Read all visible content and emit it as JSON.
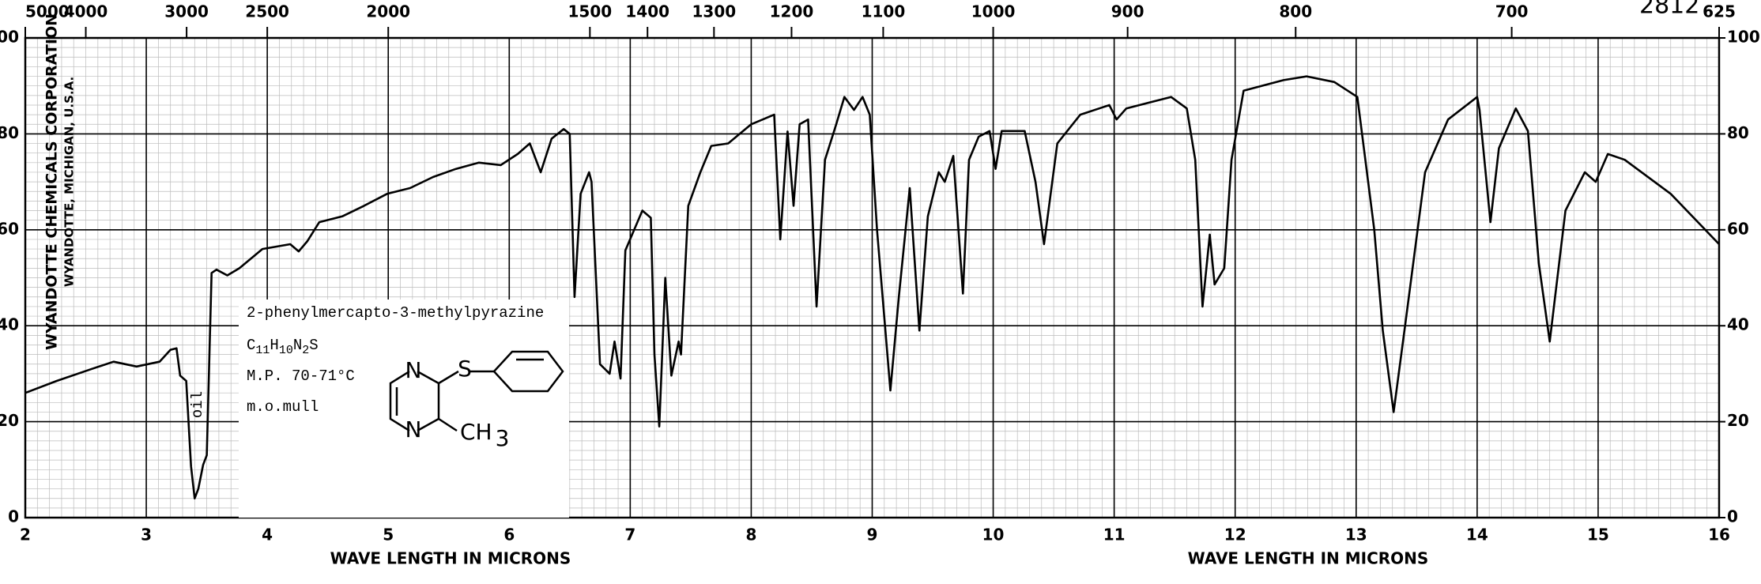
{
  "chart_data": {
    "type": "line",
    "x_label": "WAVE LENGTH IN MICRONS",
    "x_label_repeat": "WAVE LENGTH IN MICRONS",
    "annotations": {
      "code": "2812",
      "company": "WYANDOTTE CHEMICALS CORPORATION",
      "location": "WYANDOTTE, MICHIGAN, U.S.A.",
      "oil": "oil",
      "compound": "2-phenylmercapto-3-methylpyrazine",
      "formula": [
        "C",
        "11",
        "H",
        "10",
        "N",
        "2",
        "S"
      ],
      "melting_point": "M.P. 70-71°C",
      "method": "m.o.mull",
      "structure_labels": [
        "N",
        "N",
        "S",
        "CH",
        "3"
      ]
    },
    "x": [
      2.0,
      2.26,
      2.55,
      2.73,
      2.92,
      3.11,
      3.2,
      3.25,
      3.28,
      3.33,
      3.37,
      3.4,
      3.43,
      3.47,
      3.5,
      3.54,
      3.58,
      3.67,
      3.77,
      3.96,
      4.19,
      4.26,
      4.33,
      4.43,
      4.62,
      4.8,
      4.99,
      5.18,
      5.37,
      5.56,
      5.75,
      5.93,
      6.07,
      6.17,
      6.26,
      6.35,
      6.45,
      6.5,
      6.54,
      6.59,
      6.66,
      6.68,
      6.75,
      6.83,
      6.87,
      6.92,
      6.96,
      7.1,
      7.17,
      7.2,
      7.24,
      7.29,
      7.34,
      7.4,
      7.42,
      7.48,
      7.58,
      7.67,
      7.81,
      8.0,
      8.19,
      8.24,
      8.3,
      8.35,
      8.4,
      8.47,
      8.54,
      8.61,
      8.7,
      8.77,
      8.85,
      8.92,
      8.98,
      9.04,
      9.15,
      9.22,
      9.31,
      9.39,
      9.46,
      9.55,
      9.6,
      9.67,
      9.75,
      9.8,
      9.88,
      9.97,
      10.02,
      10.07,
      10.26,
      10.35,
      10.42,
      10.53,
      10.72,
      10.96,
      11.02,
      11.1,
      11.47,
      11.6,
      11.67,
      11.73,
      11.79,
      11.83,
      11.91,
      11.97,
      12.07,
      12.4,
      12.59,
      12.82,
      13.01,
      13.15,
      13.22,
      13.31,
      13.41,
      13.57,
      13.76,
      14.0,
      14.02,
      14.11,
      14.18,
      14.32,
      14.42,
      14.51,
      14.6,
      14.73,
      14.89,
      14.98,
      15.08,
      15.22,
      15.6,
      16.0
    ],
    "values": [
      26,
      28.5,
      31,
      32.5,
      31.5,
      32.5,
      35,
      35.3,
      29.6,
      28.5,
      10.7,
      4,
      6,
      11,
      13,
      51,
      51.7,
      50.5,
      52,
      56,
      57,
      55.5,
      57.6,
      61.6,
      62.8,
      65,
      67.5,
      68.7,
      71,
      72.7,
      74,
      73.5,
      75.8,
      78,
      72,
      79,
      81,
      80,
      46,
      67.5,
      72,
      70,
      32,
      30,
      36.7,
      29,
      55.7,
      64,
      62.5,
      34,
      19,
      50,
      29.6,
      36.7,
      34,
      65,
      72,
      77.5,
      78,
      82,
      84,
      58,
      80.5,
      65,
      82,
      83,
      44,
      74.6,
      81.8,
      87.7,
      85,
      87.7,
      84,
      60,
      26.5,
      46,
      68.7,
      39,
      62.8,
      72,
      70,
      75.4,
      46.7,
      74.6,
      79.4,
      80.6,
      72.7,
      80.6,
      80.6,
      70,
      57,
      78,
      84,
      86,
      83,
      85.3,
      87.7,
      85.3,
      74.6,
      44,
      59,
      48.6,
      52,
      74.6,
      89,
      91.2,
      92,
      90.8,
      87.7,
      60,
      39,
      22,
      41,
      72,
      83,
      87.7,
      85,
      61.6,
      77,
      85.3,
      80.6,
      53,
      36.7,
      64,
      72,
      70,
      75.8,
      74.6,
      67.5,
      57
    ],
    "color": "#000000",
    "xlim": [
      2,
      16
    ],
    "xticks": [
      2,
      3,
      4,
      5,
      6,
      7,
      8,
      9,
      10,
      11,
      12,
      13,
      14,
      15,
      16
    ],
    "x2ticks": [
      5000,
      4000,
      3000,
      2500,
      2000,
      1500,
      1400,
      1300,
      1200,
      1100,
      1000,
      900,
      800,
      700,
      625
    ],
    "ylim": [
      0,
      100
    ],
    "yticks": [
      0,
      20,
      40,
      60,
      80,
      {
        "value": 100,
        "label": "00"
      }
    ],
    "y2lim": [
      0,
      100
    ],
    "y2ticks": [
      0,
      20,
      40,
      60,
      80,
      100
    ],
    "grid": true
  }
}
